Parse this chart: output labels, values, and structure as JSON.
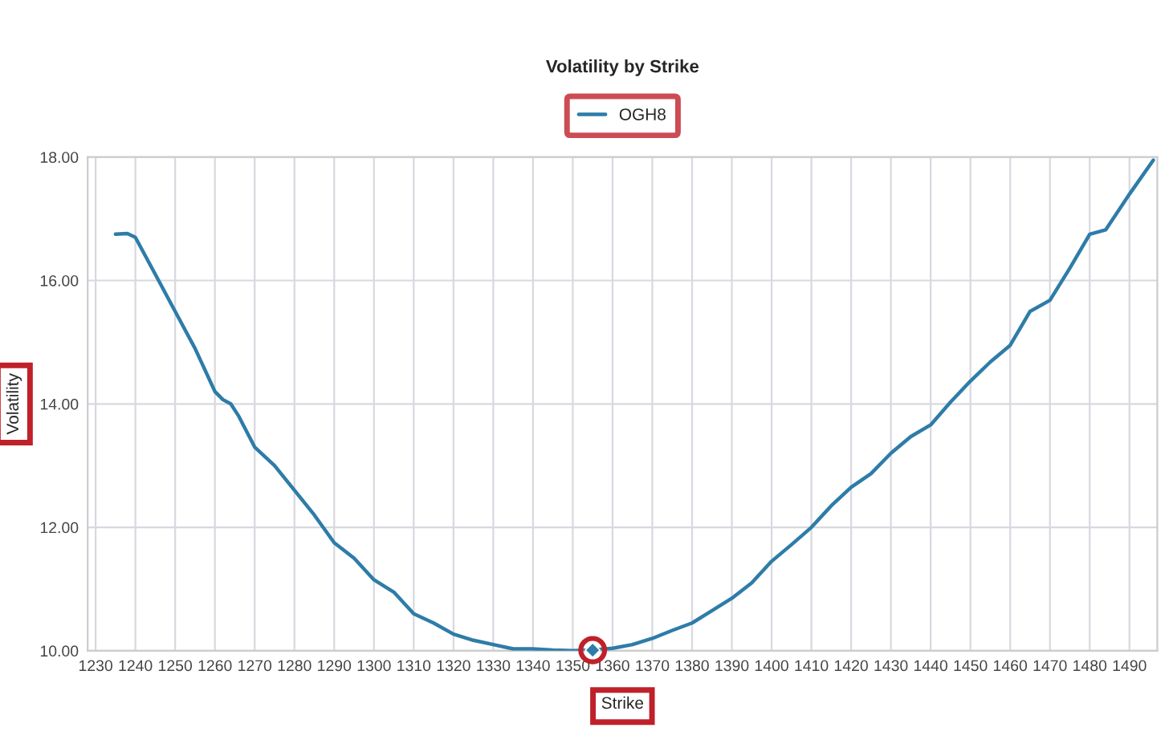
{
  "chart_data": {
    "type": "line",
    "title": "Volatility by Strike",
    "xlabel": "Strike",
    "ylabel": "Volatility",
    "series": [
      {
        "name": "OGH8",
        "color": "#2e7ca8",
        "x": [
          1235,
          1238,
          1240,
          1245,
          1250,
          1255,
          1260,
          1262,
          1264,
          1266,
          1270,
          1275,
          1280,
          1285,
          1290,
          1295,
          1300,
          1305,
          1310,
          1315,
          1320,
          1325,
          1330,
          1335,
          1340,
          1345,
          1350,
          1355,
          1360,
          1365,
          1370,
          1375,
          1380,
          1385,
          1390,
          1395,
          1400,
          1405,
          1410,
          1415,
          1420,
          1425,
          1430,
          1435,
          1440,
          1445,
          1450,
          1455,
          1460,
          1465,
          1470,
          1475,
          1480,
          1484,
          1490,
          1496
        ],
        "values": [
          16.75,
          16.76,
          16.7,
          16.1,
          15.5,
          14.9,
          14.2,
          14.07,
          14.0,
          13.8,
          13.3,
          13.0,
          12.6,
          12.2,
          11.75,
          11.5,
          11.15,
          10.95,
          10.6,
          10.45,
          10.27,
          10.17,
          10.1,
          10.03,
          10.03,
          10.01,
          10.0,
          10.01,
          10.04,
          10.1,
          10.2,
          10.33,
          10.45,
          10.65,
          10.85,
          11.1,
          11.45,
          11.72,
          12.0,
          12.35,
          12.65,
          12.87,
          13.2,
          13.47,
          13.66,
          14.03,
          14.37,
          14.68,
          14.95,
          15.5,
          15.68,
          16.2,
          16.75,
          16.82,
          17.4,
          17.95
        ]
      },
      {
        "type": "scatter",
        "color": "#2e7ca8",
        "marker": "diamond",
        "x": [
          1355
        ],
        "values": [
          10.01
        ]
      }
    ],
    "xlim": [
      1228,
      1497
    ],
    "xticks": [
      1230,
      1240,
      1250,
      1260,
      1270,
      1280,
      1290,
      1300,
      1310,
      1320,
      1330,
      1340,
      1350,
      1360,
      1370,
      1380,
      1390,
      1400,
      1410,
      1420,
      1430,
      1440,
      1450,
      1460,
      1470,
      1480,
      1490
    ],
    "ylim": [
      10,
      18
    ],
    "yticks": [
      {
        "value": 10,
        "label": "10.00"
      },
      {
        "value": 12,
        "label": "12.00"
      },
      {
        "value": 14,
        "label": "14.00"
      },
      {
        "value": 16,
        "label": "16.00"
      },
      {
        "value": 18,
        "label": "18.00"
      }
    ],
    "grid": true,
    "legend": "top",
    "line_style": "solid",
    "marker": "none"
  }
}
